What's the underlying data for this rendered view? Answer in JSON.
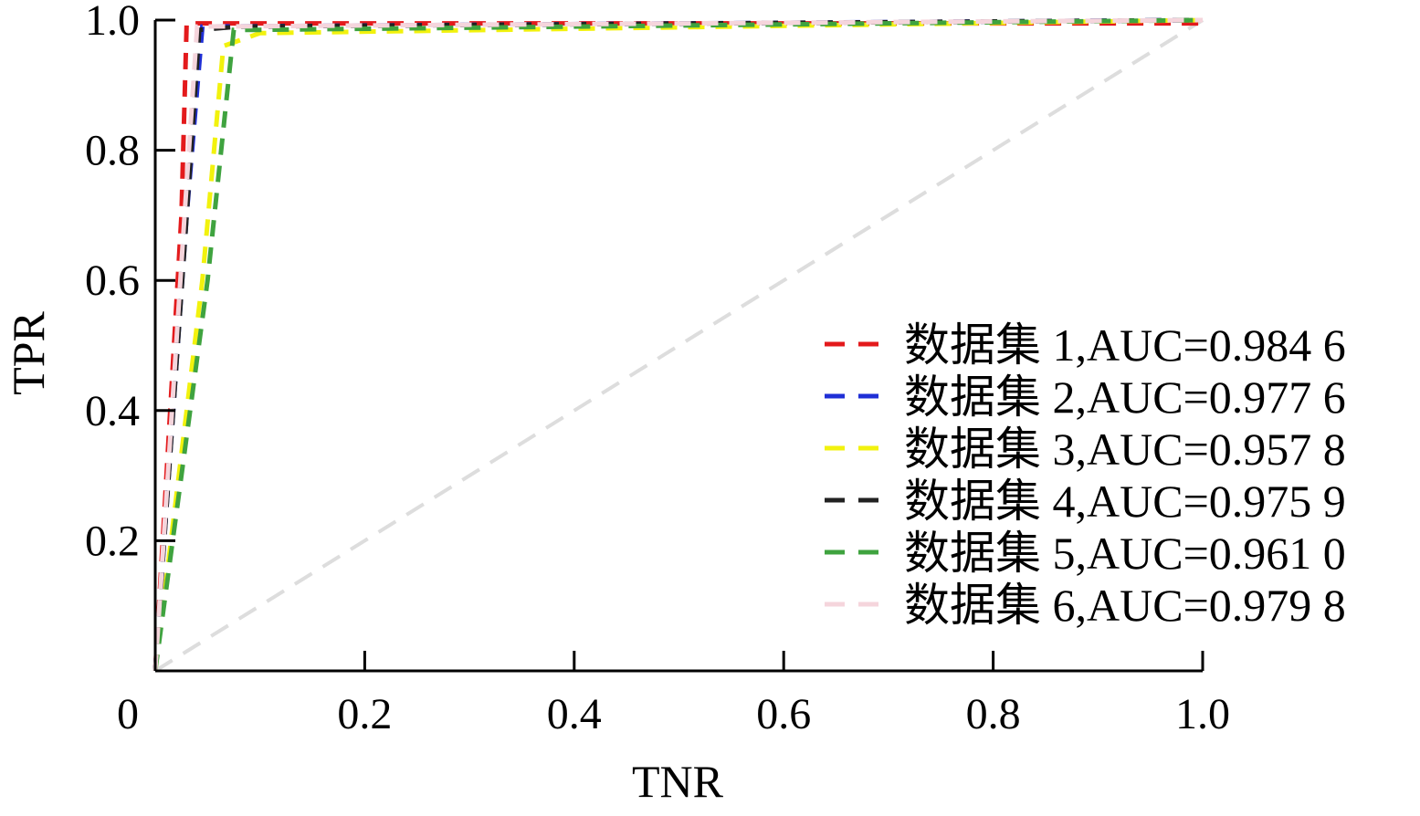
{
  "chart_data": {
    "type": "line",
    "xlabel": "TNR",
    "ylabel": "TPR",
    "xlim": [
      0,
      1.0
    ],
    "ylim": [
      0,
      1.0
    ],
    "x_ticks": [
      {
        "value": 0,
        "label": "0"
      },
      {
        "value": 0.2,
        "label": "0.2"
      },
      {
        "value": 0.4,
        "label": "0.4"
      },
      {
        "value": 0.6,
        "label": "0.6"
      },
      {
        "value": 0.8,
        "label": "0.8"
      },
      {
        "value": 1.0,
        "label": "1.0"
      }
    ],
    "y_ticks": [
      {
        "value": 0.2,
        "label": "0.2"
      },
      {
        "value": 0.4,
        "label": "0.4"
      },
      {
        "value": 0.6,
        "label": "0.6"
      },
      {
        "value": 0.8,
        "label": "0.8"
      },
      {
        "value": 1.0,
        "label": "1.0"
      }
    ],
    "grid": false,
    "legend_position": "bottom-right",
    "reference_line": {
      "color": "#dddddd",
      "x": [
        0,
        1
      ],
      "y": [
        0,
        1
      ]
    },
    "series": [
      {
        "name": "数据集 1,AUC=0.984 6",
        "color": "#e31a1c",
        "x": [
          0,
          0.025,
          0.03,
          1.0
        ],
        "y": [
          0,
          0.7,
          0.995,
          0.995
        ]
      },
      {
        "name": "数据集 2,AUC=0.977 6",
        "color": "#1f2fd6",
        "x": [
          0,
          0.03,
          0.045,
          1.0
        ],
        "y": [
          0,
          0.7,
          0.99,
          1.0
        ]
      },
      {
        "name": "数据集 3,AUC=0.957 8",
        "color": "#f2f20d",
        "x": [
          0,
          0.045,
          0.065,
          0.1,
          1.0
        ],
        "y": [
          0,
          0.6,
          0.96,
          0.98,
          1.0
        ]
      },
      {
        "name": "数据集 4,AUC=0.975 9",
        "color": "#222222",
        "x": [
          0,
          0.03,
          0.042,
          0.08,
          1.0
        ],
        "y": [
          0,
          0.7,
          0.985,
          0.99,
          1.0
        ]
      },
      {
        "name": "数据集 5,AUC=0.961 0",
        "color": "#3fa33f",
        "x": [
          0,
          0.05,
          0.075,
          0.1,
          1.0
        ],
        "y": [
          0,
          0.6,
          0.985,
          0.985,
          1.0
        ]
      },
      {
        "name": "数据集 6,AUC=0.979 8",
        "color": "#f5d5dc",
        "x": [
          0,
          0.028,
          0.04,
          1.0
        ],
        "y": [
          0,
          0.7,
          0.99,
          1.0
        ]
      }
    ]
  }
}
